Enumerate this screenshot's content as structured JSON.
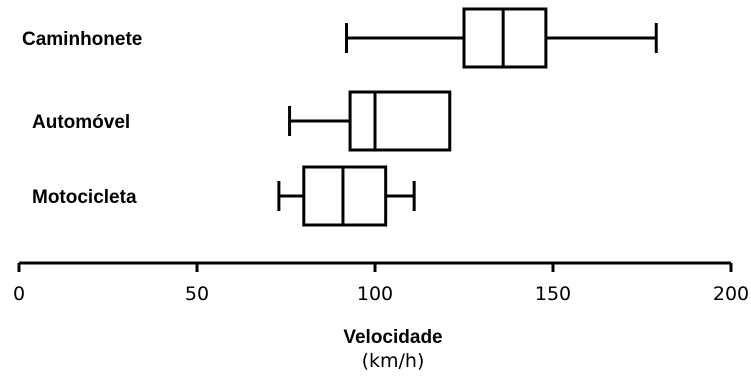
{
  "chart_data": {
    "type": "boxplot",
    "orientation": "horizontal",
    "categories": [
      "Caminhonete",
      "Automóvel",
      "Motocicleta"
    ],
    "boxes": [
      {
        "label": "Caminhonete",
        "min": 92,
        "q1": 125,
        "median": 136,
        "q3": 148,
        "max": 179
      },
      {
        "label": "Automóvel",
        "min": 76,
        "q1": 93,
        "median": 100,
        "q3": 121,
        "max": 121
      },
      {
        "label": "Motocicleta",
        "min": 73,
        "q1": 80,
        "median": 91,
        "q3": 103,
        "max": 111
      }
    ],
    "xlabel": "Velocidade",
    "xlabel_unit": "(km/h)",
    "xlim": [
      0,
      200
    ],
    "xticks": [
      0,
      50,
      100,
      150,
      200
    ],
    "grid": false
  }
}
